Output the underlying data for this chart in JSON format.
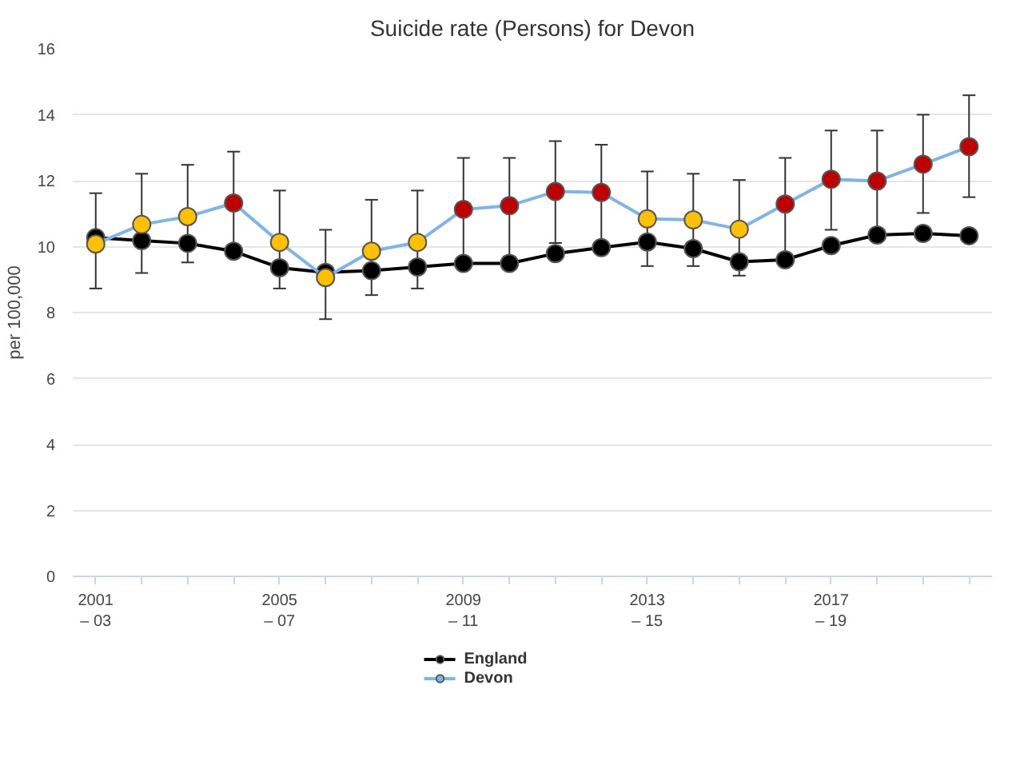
{
  "chart_data": {
    "type": "line",
    "title": "Suicide rate (Persons) for Devon",
    "ylabel": "per 100,000",
    "categories": [
      "2001\n– 03",
      null,
      null,
      null,
      "2005\n– 07",
      null,
      null,
      null,
      "2009\n– 11",
      null,
      null,
      null,
      "2013\n– 15",
      null,
      null,
      null,
      "2017\n– 19",
      null,
      null,
      null
    ],
    "series": [
      {
        "name": "England",
        "color": "#000000",
        "values": [
          10.27,
          10.18,
          10.1,
          9.86,
          9.36,
          9.22,
          9.27,
          9.38,
          9.49,
          9.49,
          9.79,
          9.97,
          10.14,
          9.94,
          9.54,
          9.6,
          10.03,
          10.35,
          10.4,
          10.33
        ]
      },
      {
        "name": "Devon",
        "color": "#7cb5ec",
        "colors": [
          "#ffc000",
          "#ffc000",
          "#ffc000",
          "#c00000",
          "#ffc000",
          "#ffc000",
          "#ffc000",
          "#ffc000",
          "#c00000",
          "#c00000",
          "#c00000",
          "#c00000",
          "#ffc000",
          "#ffc000",
          "#ffc000",
          "#c00000",
          "#c00000",
          "#c00000",
          "#c00000",
          "#c00000"
        ],
        "values": [
          10.08,
          10.67,
          10.91,
          11.32,
          10.13,
          9.06,
          9.86,
          10.13,
          11.13,
          11.24,
          11.67,
          11.64,
          10.84,
          10.81,
          10.53,
          11.29,
          12.04,
          11.99,
          12.5,
          13.03
        ],
        "errors": [
          [
            8.73,
            11.62
          ],
          [
            9.2,
            12.21
          ],
          [
            9.52,
            12.48
          ],
          [
            9.8,
            12.88
          ],
          [
            8.73,
            11.7
          ],
          [
            7.8,
            10.51
          ],
          [
            8.53,
            11.42
          ],
          [
            8.73,
            11.7
          ],
          [
            9.6,
            12.69
          ],
          [
            9.7,
            12.69
          ],
          [
            10.11,
            13.2
          ],
          [
            10.1,
            13.09
          ],
          [
            9.41,
            12.28
          ],
          [
            9.41,
            12.21
          ],
          [
            9.12,
            12.02
          ],
          [
            9.7,
            12.69
          ],
          [
            10.51,
            13.52
          ],
          [
            10.5,
            13.52
          ],
          [
            11.02,
            14.0
          ],
          [
            11.5,
            14.59
          ]
        ]
      }
    ],
    "ylim": [
      0,
      16
    ],
    "yticks": [
      0,
      2,
      4,
      6,
      8,
      10,
      12,
      14,
      16
    ],
    "grid": "y",
    "legend": "bottom",
    "marker": "circle",
    "line_style": "solid"
  }
}
